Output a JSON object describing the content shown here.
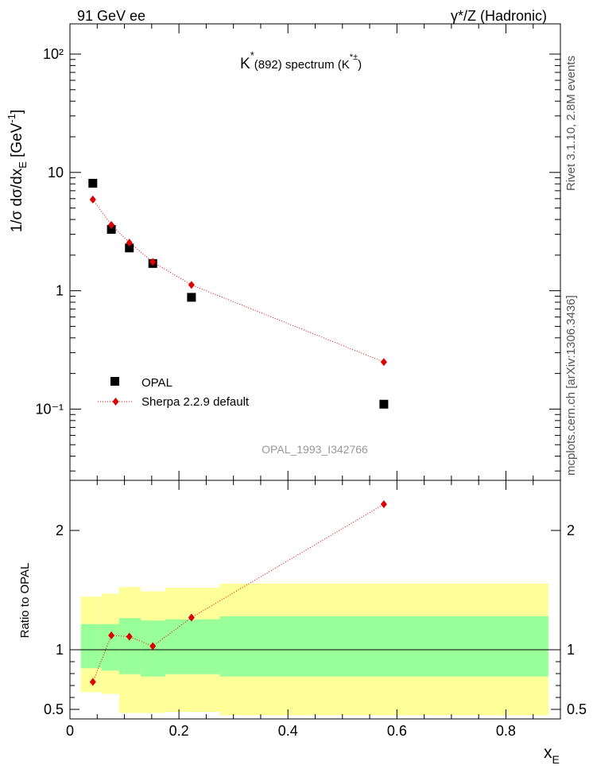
{
  "header": {
    "left": "91 GeV ee",
    "right": "γ*/Z (Hadronic)"
  },
  "side_labels": {
    "rivet": "Rivet 3.1.10, 2.8M events",
    "mcplots": "mcplots.cern.ch [arXiv:1306.3436]"
  },
  "chart_data": [
    {
      "type": "scatter",
      "title": "K*(892) spectrum (K*±)",
      "title_parts": {
        "k": "K",
        "star": "*",
        "mid": "(892) spectrum (K",
        "sup": "*±",
        "close": ")"
      },
      "ylabel": "1/σ dσ/dx_E [GeV⁻¹]",
      "ylabel_parts": {
        "main": "1/σ dσ/dx",
        "sub": "E",
        "unit_open": " [GeV",
        "unit_sup": "-1",
        "unit_close": "]"
      },
      "yscale": "log",
      "ylim": [
        0.025,
        180
      ],
      "xlim": [
        0,
        0.9
      ],
      "y_ticks": [
        "10⁻¹",
        "1",
        "10",
        "10²"
      ],
      "y_tick_values": [
        0.1,
        1,
        10,
        100
      ],
      "watermark": "OPAL_1993_I342766",
      "legend_position": "bottom-left",
      "series": [
        {
          "name": "OPAL",
          "marker": "square",
          "color": "#000000",
          "x": [
            0.042,
            0.076,
            0.109,
            0.152,
            0.223,
            0.576
          ],
          "y": [
            8.1,
            3.3,
            2.3,
            1.7,
            0.88,
            0.11
          ]
        },
        {
          "name": "Sherpa 2.2.9 default",
          "marker": "diamond",
          "color": "#dd0000",
          "line": "dotted",
          "x": [
            0.042,
            0.076,
            0.109,
            0.152,
            0.223,
            0.576
          ],
          "y": [
            5.9,
            3.6,
            2.55,
            1.75,
            1.12,
            0.25
          ]
        }
      ]
    },
    {
      "type": "line",
      "ylabel": "Ratio to OPAL",
      "xlabel": "x_E",
      "xlabel_parts": {
        "main": "x",
        "sub": "E"
      },
      "xlim": [
        0,
        0.9
      ],
      "ylim": [
        0.42,
        2.42
      ],
      "x_ticks": [
        "0",
        "0.2",
        "0.4",
        "0.6",
        "0.8"
      ],
      "x_tick_values": [
        0,
        0.2,
        0.4,
        0.6,
        0.8
      ],
      "y_ticks": [
        "0.5",
        "1",
        "2"
      ],
      "y_tick_values": [
        0.5,
        1,
        2
      ],
      "reference_line": 1,
      "bands": {
        "bin_edges": [
          0.02,
          0.058,
          0.09,
          0.13,
          0.175,
          0.275,
          0.878
        ],
        "inner_color": "#99ff99",
        "inner_low": [
          0.845,
          0.825,
          0.795,
          0.775,
          0.795,
          0.775
        ],
        "inner_high": [
          1.215,
          1.215,
          1.265,
          1.245,
          1.255,
          1.28
        ],
        "outer_color": "#ffff99",
        "outer_low": [
          0.645,
          0.63,
          0.47,
          0.47,
          0.48,
          0.45
        ],
        "outer_high": [
          1.445,
          1.47,
          1.525,
          1.49,
          1.52,
          1.555
        ]
      },
      "series": [
        {
          "name": "Sherpa 2.2.9 default",
          "marker": "diamond",
          "color": "#dd0000",
          "line": "dotted",
          "x": [
            0.042,
            0.076,
            0.109,
            0.152,
            0.223,
            0.576
          ],
          "y": [
            0.73,
            1.12,
            1.11,
            1.03,
            1.27,
            2.22
          ]
        }
      ]
    }
  ]
}
